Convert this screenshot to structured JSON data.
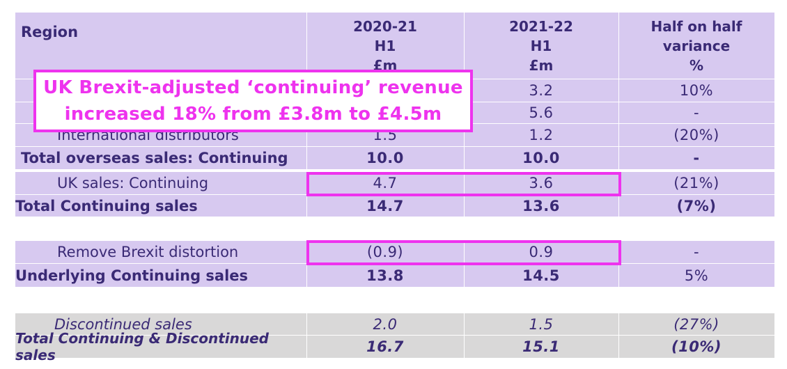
{
  "header": {
    "region": "Region",
    "col1": [
      "2020-21",
      "H1",
      "£m"
    ],
    "col2": [
      "2021-22",
      "H1",
      "£m"
    ],
    "col3": [
      "Half on half",
      "variance",
      "%"
    ]
  },
  "hidden_rows": [
    {
      "c2": "3.2",
      "c3": "10%"
    },
    {
      "c2": "5.6",
      "c3": "-"
    },
    {
      "label": "International distributors",
      "c1": "1.5",
      "c2": "1.2",
      "c3": "(20%)"
    }
  ],
  "rows": {
    "overseas": {
      "label": "Total overseas sales: Continuing",
      "c1": "10.0",
      "c2": "10.0",
      "c3": "-"
    },
    "uk": {
      "label": "UK sales: Continuing",
      "c1": "4.7",
      "c2": "3.6",
      "c3": "(21%)"
    },
    "total_cont": {
      "label": "Total Continuing sales",
      "c1": "14.7",
      "c2": "13.6",
      "c3": "(7%)"
    },
    "brexit": {
      "label": "Remove Brexit distortion",
      "c1": "(0.9)",
      "c2": "0.9",
      "c3": "-"
    },
    "underlying": {
      "label": "Underlying Continuing sales",
      "c1": "13.8",
      "c2": "14.5",
      "c3": "5%"
    },
    "discontinued": {
      "label": "Discontinued sales",
      "c1": "2.0",
      "c2": "1.5",
      "c3": "(27%)"
    },
    "total_all": {
      "label": "Total Continuing & Discontinued sales",
      "c1": "16.7",
      "c2": "15.1",
      "c3": "(10%)"
    }
  },
  "callout": {
    "line1": "UK Brexit-adjusted ‘continuing’ revenue",
    "line2": "increased 18% from £3.8m to £4.5m"
  },
  "colors": {
    "row_purple": "#d7c9f0",
    "row_grey": "#d9d8d8",
    "text": "#3a2a75",
    "highlight": "#ee33ee"
  }
}
